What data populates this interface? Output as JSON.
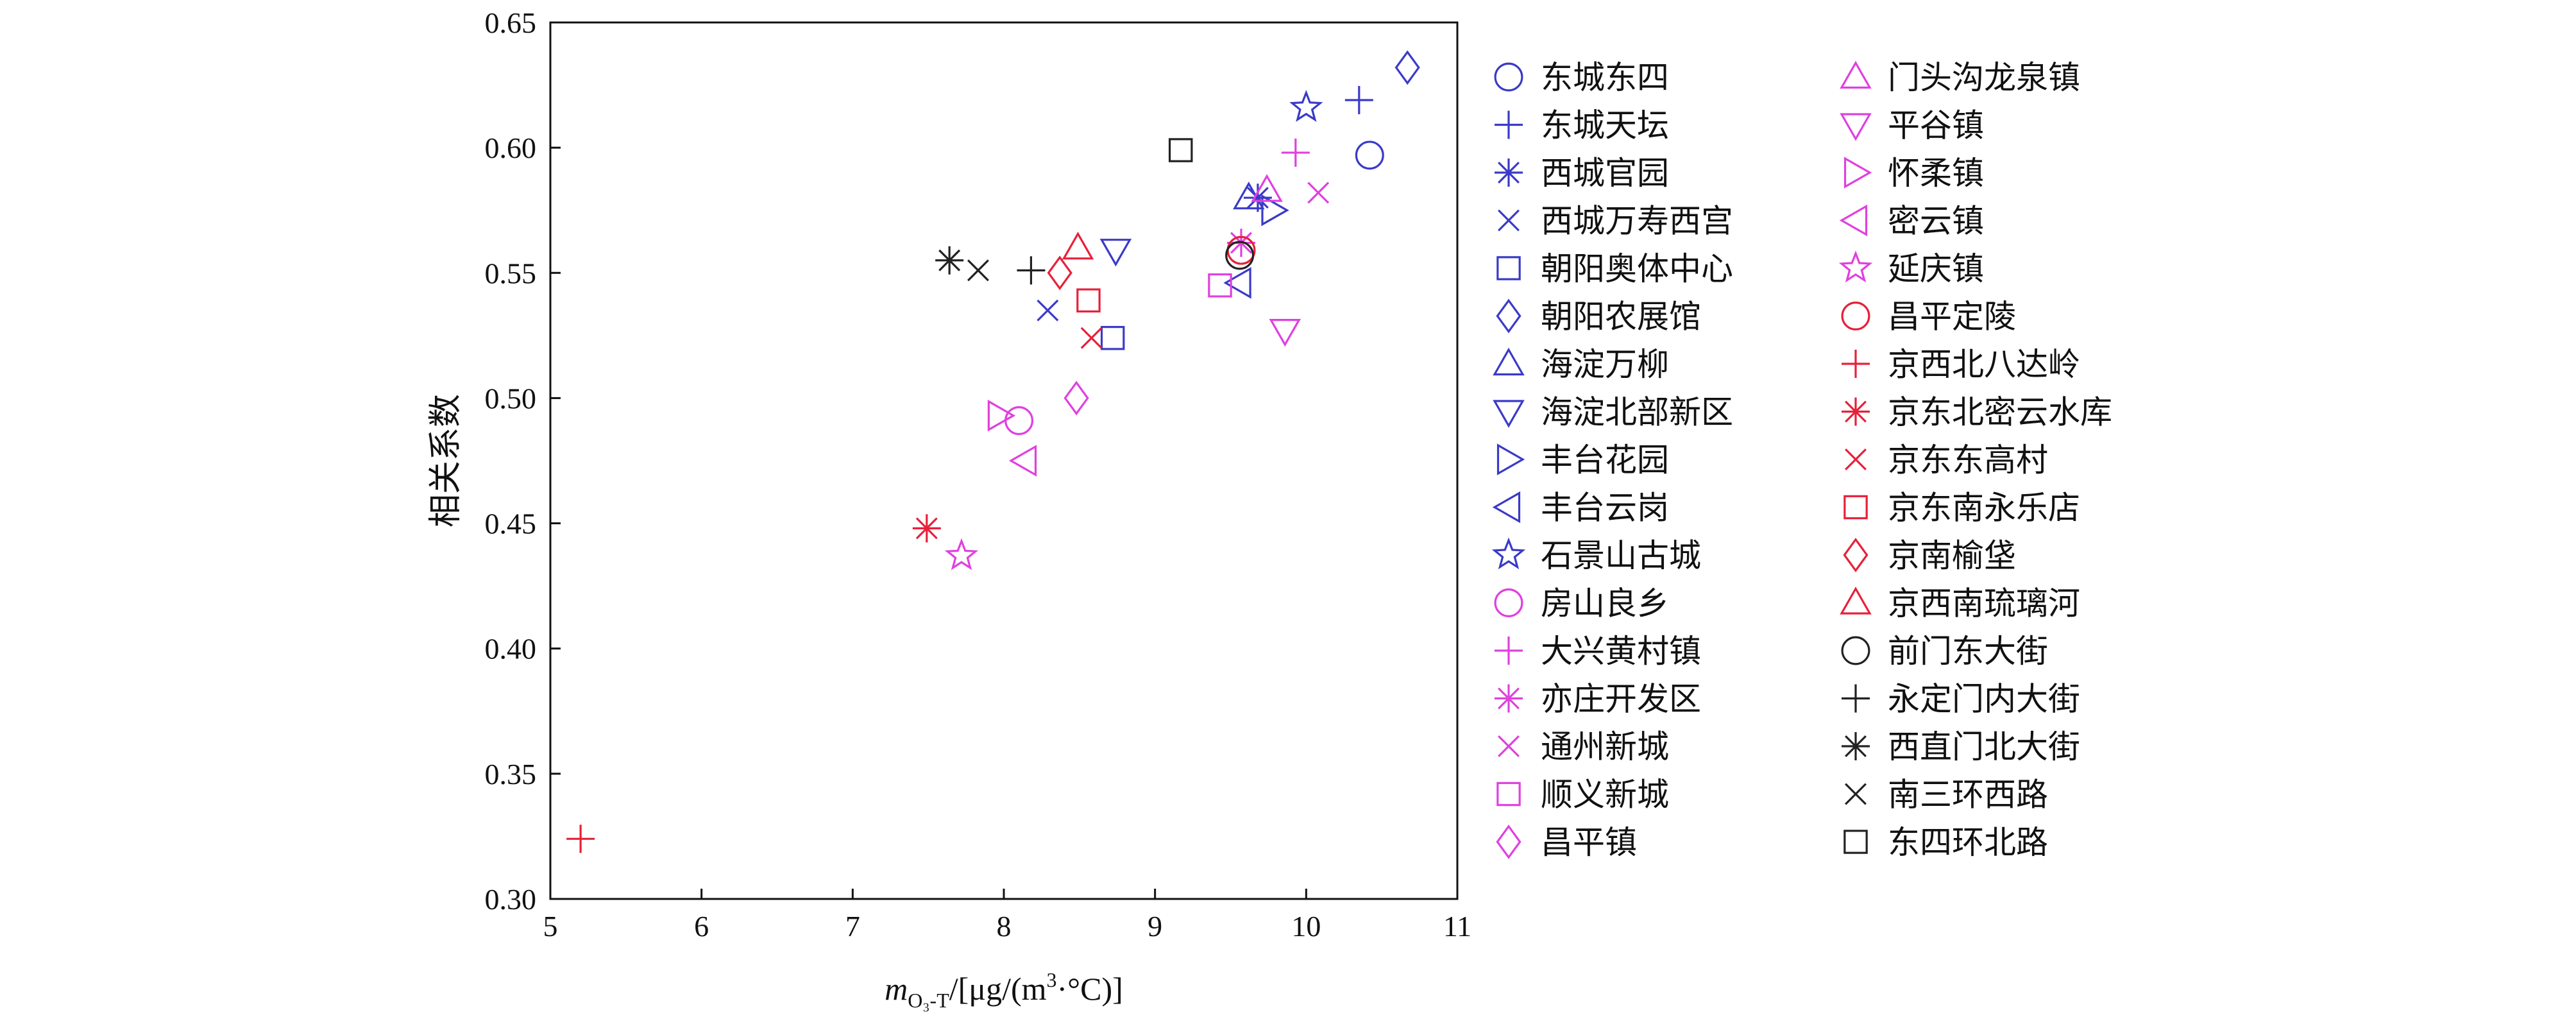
{
  "chart_data": {
    "type": "scatter",
    "title": "",
    "xlabel": "",
    "xlabel_parts": {
      "var": "m",
      "sub": "O₃-T",
      "unit_pre": "/[μg/(m",
      "sup": "3",
      "unit_post": "·°C)]"
    },
    "ylabel": "相关系数",
    "xlim": [
      5,
      11
    ],
    "ylim": [
      0.3,
      0.65
    ],
    "xticks": [
      "5",
      "6",
      "7",
      "8",
      "9",
      "10",
      "11"
    ],
    "yticks": [
      "0.30",
      "0.35",
      "0.40",
      "0.45",
      "0.50",
      "0.55",
      "0.60",
      "0.65"
    ],
    "grid": false,
    "legend_position": "right",
    "colors": {
      "blue": "#3a3ac8",
      "magenta": "#e040e0",
      "red": "#e8203a",
      "black": "#222222"
    },
    "series": [
      {
        "name": "东城东四",
        "marker": "circle",
        "color": "blue",
        "x": 10.42,
        "y": 0.597
      },
      {
        "name": "东城天坛",
        "marker": "plus",
        "color": "blue",
        "x": 10.35,
        "y": 0.619
      },
      {
        "name": "西城官园",
        "marker": "asterisk",
        "color": "blue",
        "x": 9.68,
        "y": 0.58
      },
      {
        "name": "西城万寿西宫",
        "marker": "x",
        "color": "blue",
        "x": 8.29,
        "y": 0.535
      },
      {
        "name": "朝阳奥体中心",
        "marker": "square",
        "color": "blue",
        "x": 8.72,
        "y": 0.524
      },
      {
        "name": "朝阳农展馆",
        "marker": "diamond",
        "color": "blue",
        "x": 10.67,
        "y": 0.632
      },
      {
        "name": "海淀万柳",
        "marker": "triangle-up",
        "color": "blue",
        "x": 9.62,
        "y": 0.58
      },
      {
        "name": "海淀北部新区",
        "marker": "triangle-down",
        "color": "blue",
        "x": 8.74,
        "y": 0.559
      },
      {
        "name": "丰台花园",
        "marker": "triangle-right",
        "color": "blue",
        "x": 9.78,
        "y": 0.575
      },
      {
        "name": "丰台云岗",
        "marker": "triangle-left",
        "color": "blue",
        "x": 9.56,
        "y": 0.546
      },
      {
        "name": "石景山古城",
        "marker": "star",
        "color": "blue",
        "x": 10.0,
        "y": 0.616
      },
      {
        "name": "房山良乡",
        "marker": "circle",
        "color": "magenta",
        "x": 8.1,
        "y": 0.491
      },
      {
        "name": "大兴黄村镇",
        "marker": "plus",
        "color": "magenta",
        "x": 9.93,
        "y": 0.598
      },
      {
        "name": "亦庄开发区",
        "marker": "asterisk",
        "color": "magenta",
        "x": 9.57,
        "y": 0.562
      },
      {
        "name": "通州新城",
        "marker": "x",
        "color": "magenta",
        "x": 10.08,
        "y": 0.582
      },
      {
        "name": "顺义新城",
        "marker": "square",
        "color": "magenta",
        "x": 9.43,
        "y": 0.545
      },
      {
        "name": "昌平镇",
        "marker": "diamond",
        "color": "magenta",
        "x": 8.48,
        "y": 0.5
      },
      {
        "name": "门头沟龙泉镇",
        "marker": "triangle-up",
        "color": "magenta",
        "x": 9.74,
        "y": 0.583
      },
      {
        "name": "平谷镇",
        "marker": "triangle-down",
        "color": "magenta",
        "x": 9.86,
        "y": 0.527
      },
      {
        "name": "怀柔镇",
        "marker": "triangle-right",
        "color": "magenta",
        "x": 7.97,
        "y": 0.493
      },
      {
        "name": "密云镇",
        "marker": "triangle-left",
        "color": "magenta",
        "x": 8.14,
        "y": 0.475
      },
      {
        "name": "延庆镇",
        "marker": "star",
        "color": "magenta",
        "x": 7.72,
        "y": 0.437
      },
      {
        "name": "昌平定陵",
        "marker": "circle",
        "color": "red",
        "x": 9.57,
        "y": 0.559
      },
      {
        "name": "京西北八达岭",
        "marker": "plus",
        "color": "red",
        "x": 5.2,
        "y": 0.324
      },
      {
        "name": "京东北密云水库",
        "marker": "asterisk",
        "color": "red",
        "x": 7.49,
        "y": 0.448
      },
      {
        "name": "京东东高村",
        "marker": "x",
        "color": "red",
        "x": 8.58,
        "y": 0.524
      },
      {
        "name": "京东南永乐店",
        "marker": "square",
        "color": "red",
        "x": 8.56,
        "y": 0.539
      },
      {
        "name": "京南榆垡",
        "marker": "diamond",
        "color": "red",
        "x": 8.37,
        "y": 0.55
      },
      {
        "name": "京西南琉璃河",
        "marker": "triangle-up",
        "color": "red",
        "x": 8.49,
        "y": 0.56
      },
      {
        "name": "前门东大街",
        "marker": "circle",
        "color": "black",
        "x": 9.56,
        "y": 0.557
      },
      {
        "name": "永定门内大街",
        "marker": "plus",
        "color": "black",
        "x": 8.18,
        "y": 0.551
      },
      {
        "name": "西直门北大街",
        "marker": "asterisk",
        "color": "black",
        "x": 7.64,
        "y": 0.555
      },
      {
        "name": "南三环西路",
        "marker": "x",
        "color": "black",
        "x": 7.83,
        "y": 0.551
      },
      {
        "name": "东四环北路",
        "marker": "square",
        "color": "black",
        "x": 9.17,
        "y": 0.599
      }
    ]
  }
}
